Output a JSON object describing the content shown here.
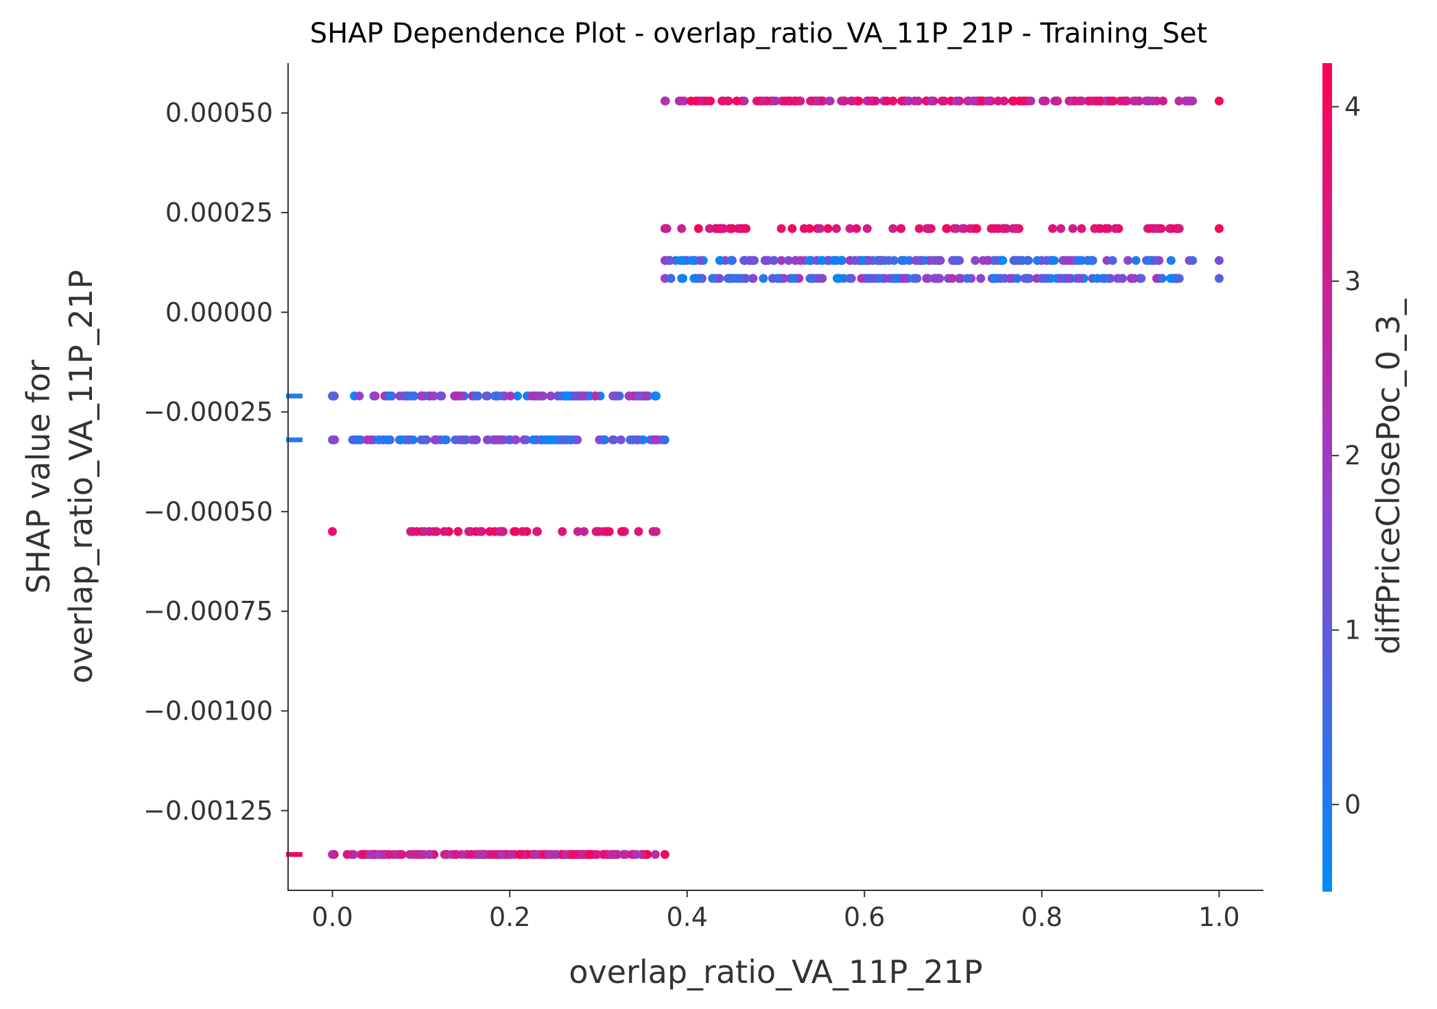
{
  "chart_data": {
    "type": "scatter",
    "title": "SHAP Dependence Plot - overlap_ratio_VA_11P_21P - Training_Set",
    "xlabel": "overlap_ratio_VA_11P_21P",
    "ylabel_line1": "SHAP value for",
    "ylabel_line2": "overlap_ratio_VA_11P_21P",
    "colorbar_label": "diffPriceClosePoc_0_3_",
    "xlim": [
      -0.05,
      1.05
    ],
    "ylim": [
      -0.00145,
      0.000625
    ],
    "x_ticks": [
      0.0,
      0.2,
      0.4,
      0.6,
      0.8,
      1.0
    ],
    "x_tick_labels": [
      "0.0",
      "0.2",
      "0.4",
      "0.6",
      "0.8",
      "1.0"
    ],
    "y_ticks": [
      0.0005,
      0.00025,
      0.0,
      -0.00025,
      -0.0005,
      -0.00075,
      -0.001,
      -0.00125
    ],
    "y_tick_labels": [
      "0.00050",
      "0.00025",
      "0.00000",
      "−0.00025",
      "−0.00050",
      "−0.00075",
      "−0.00100",
      "−0.00125"
    ],
    "colorbar_range": [
      -0.5,
      4.25
    ],
    "colorbar_ticks": [
      0,
      1,
      2,
      3,
      4
    ],
    "colorbar_tick_labels": [
      "0",
      "1",
      "2",
      "3",
      "4"
    ],
    "colormap": [
      "#008bfb",
      "#9b3ec9",
      "#ff0052"
    ],
    "grid": false,
    "series": [
      {
        "y": 0.00053,
        "x_range": [
          0.375,
          0.97
        ],
        "x_extra": [
          1.0
        ],
        "color_range": [
          2.2,
          4.2
        ],
        "count": 160
      },
      {
        "y": 0.00021,
        "x_range": [
          0.375,
          0.955
        ],
        "x_extra": [
          1.0
        ],
        "color_range": [
          2.9,
          4.2
        ],
        "count": 95,
        "gaps": [
          [
            0.395,
            0.41
          ],
          [
            0.47,
            0.5
          ]
        ]
      },
      {
        "y": 0.00013,
        "x_range": [
          0.375,
          0.97
        ],
        "x_extra": [
          1.0
        ],
        "color_range": [
          -0.5,
          2.2
        ],
        "count": 170
      },
      {
        "y": 8.5e-05,
        "x_range": [
          0.375,
          0.955
        ],
        "x_extra": [
          1.0
        ],
        "color_range": [
          -0.5,
          2.4
        ],
        "count": 165
      },
      {
        "y": -0.00021,
        "x_range": [
          0.0,
          0.365
        ],
        "x_extra": [],
        "color_range": [
          -0.5,
          2.6
        ],
        "count": 110,
        "gaps": [
          [
            0.005,
            0.02
          ]
        ]
      },
      {
        "y": -0.00032,
        "x_range": [
          0.0,
          0.375
        ],
        "x_extra": [],
        "color_range": [
          -0.5,
          2.5
        ],
        "count": 130,
        "gaps": [
          [
            0.005,
            0.015
          ]
        ]
      },
      {
        "y": -0.00055,
        "x_range": [
          0.0,
          0.365
        ],
        "x_extra": [],
        "color_range": [
          2.9,
          4.2
        ],
        "count": 55,
        "gaps": [
          [
            0.005,
            0.045
          ],
          [
            0.055,
            0.08
          ],
          [
            0.22,
            0.225
          ],
          [
            0.245,
            0.255
          ],
          [
            0.285,
            0.295
          ]
        ]
      },
      {
        "y": -0.00136,
        "x_range": [
          0.0,
          0.375
        ],
        "x_extra": [],
        "color_range": [
          2.0,
          4.2
        ],
        "count": 170,
        "gaps": [
          [
            0.005,
            0.015
          ]
        ]
      }
    ],
    "axis_markers": [
      {
        "y": -0.00021,
        "color_value": 0.0
      },
      {
        "y": -0.00032,
        "color_value": 0.0
      },
      {
        "y": -0.00136,
        "color_value": 4.0
      }
    ]
  }
}
